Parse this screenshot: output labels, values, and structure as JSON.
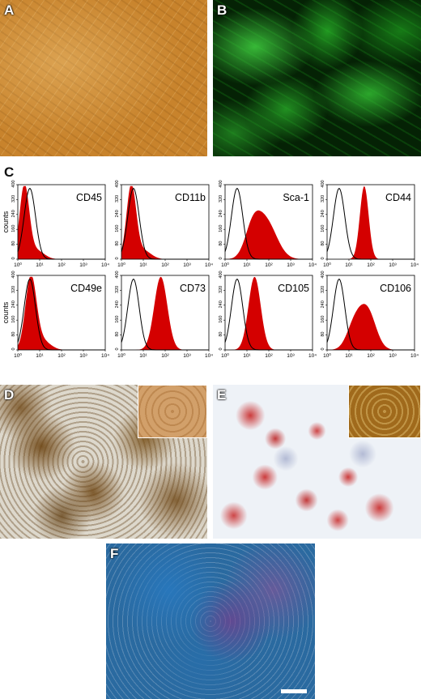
{
  "panels": {
    "A": {
      "label": "A"
    },
    "B": {
      "label": "B"
    },
    "C": {
      "label": "C"
    },
    "D": {
      "label": "D"
    },
    "E": {
      "label": "E"
    },
    "F": {
      "label": "F"
    }
  },
  "chart_data": {
    "type": "area",
    "ylabel": "counts",
    "x_ticks": [
      "10⁰",
      "10¹",
      "10²",
      "10³",
      "10⁴"
    ],
    "y_ticks": [
      "0",
      "80",
      "160",
      "240",
      "320",
      "400"
    ],
    "ylim": [
      0,
      400
    ],
    "x_scale": "log",
    "xlim": [
      1,
      10000
    ],
    "series_style": {
      "marker": "#d40000",
      "isotype": "#000000"
    },
    "histograms": [
      {
        "marker": "CD45",
        "peak_log": 0.3,
        "width": 0.22,
        "mode": "neg"
      },
      {
        "marker": "CD11b",
        "peak_log": 0.45,
        "width": 0.22,
        "mode": "neg"
      },
      {
        "marker": "Sca-1",
        "peak_log": 1.85,
        "width": 0.5,
        "mode": "pos_broad"
      },
      {
        "marker": "CD44",
        "peak_log": 1.7,
        "width": 0.2,
        "mode": "pos"
      },
      {
        "marker": "CD49e",
        "peak_log": 0.6,
        "width": 0.25,
        "mode": "neg"
      },
      {
        "marker": "CD73",
        "peak_log": 1.8,
        "width": 0.3,
        "mode": "pos"
      },
      {
        "marker": "CD105",
        "peak_log": 1.35,
        "width": 0.28,
        "mode": "pos"
      },
      {
        "marker": "CD106",
        "peak_log": 1.85,
        "width": 0.38,
        "mode": "pos_broad"
      }
    ]
  },
  "scale_bar": {
    "color": "#ffffff"
  }
}
